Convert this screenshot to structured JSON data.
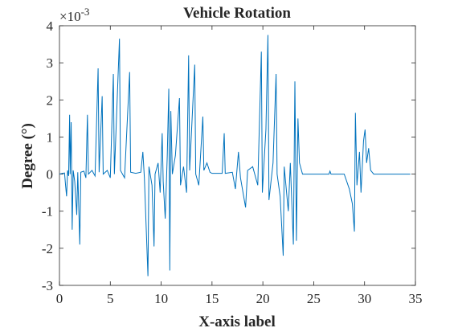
{
  "chart_data": {
    "type": "line",
    "title": "Vehicle Rotation",
    "x_label": "X-axis label",
    "y_label": "Degree (°)",
    "y_scale": {
      "base": "×10",
      "exponent": "-3"
    },
    "xlim": [
      0,
      35
    ],
    "xticks": [
      0,
      5,
      10,
      15,
      20,
      25,
      30,
      35
    ],
    "ylim": [
      -3,
      4
    ],
    "yticks": [
      -3,
      -2,
      -1,
      0,
      1,
      2,
      3,
      4
    ],
    "series": [
      {
        "color": "#0072BD",
        "x": [
          0,
          0.3,
          0.5,
          0.6,
          0.7,
          0.8,
          0.9,
          1.0,
          1.05,
          1.15,
          1.25,
          1.35,
          1.5,
          1.7,
          1.8,
          2.0,
          2.1,
          2.4,
          2.6,
          2.75,
          2.85,
          3.2,
          3.5,
          3.8,
          3.9,
          4.2,
          4.3,
          4.7,
          5.0,
          5.3,
          5.4,
          5.9,
          6.0,
          6.4,
          6.9,
          7.0,
          7.5,
          8.0,
          8.2,
          8.35,
          8.7,
          8.8,
          9.1,
          9.3,
          9.4,
          9.7,
          9.9,
          10.1,
          10.2,
          10.4,
          10.6,
          10.75,
          10.85,
          10.95,
          11.1,
          11.4,
          11.8,
          11.9,
          12.2,
          12.5,
          12.7,
          12.8,
          13.3,
          13.4,
          13.7,
          14.1,
          14.2,
          14.5,
          14.8,
          15.0,
          16.0,
          16.2,
          16.3,
          17.0,
          17.3,
          17.6,
          17.8,
          18.3,
          18.5,
          19.0,
          19.5,
          19.85,
          19.95,
          20.3,
          20.5,
          20.6,
          21.0,
          21.3,
          21.4,
          21.7,
          22.0,
          22.1,
          22.5,
          22.7,
          23.0,
          23.15,
          23.3,
          23.45,
          23.6,
          23.9,
          24.5,
          26.5,
          26.6,
          26.7,
          28.0,
          28.5,
          28.8,
          29.0,
          29.1,
          29.25,
          29.5,
          29.65,
          29.9,
          30.05,
          30.2,
          30.4,
          30.6,
          30.9,
          34.5
        ],
        "values": [
          0,
          0.02,
          0.03,
          -0.3,
          -0.6,
          0.1,
          -0.05,
          1.6,
          0.0,
          1.4,
          -1.5,
          0.1,
          -0.2,
          -1.1,
          0.05,
          -1.9,
          0.05,
          0.08,
          -0.1,
          1.6,
          0.0,
          0.1,
          -0.05,
          2.85,
          0.05,
          2.1,
          0.0,
          0.1,
          -0.1,
          2.7,
          0.0,
          3.65,
          0.1,
          -0.1,
          2.75,
          0.05,
          0.02,
          0.05,
          0.6,
          -0.1,
          -2.75,
          0.2,
          -0.3,
          -1.95,
          0.0,
          0.3,
          -0.5,
          1.1,
          -0.2,
          -1.2,
          0.5,
          2.3,
          -2.6,
          1.7,
          0.0,
          0.5,
          2.05,
          -0.3,
          0.2,
          -0.5,
          3.2,
          0.1,
          2.95,
          0.0,
          -0.3,
          1.55,
          0.1,
          0.3,
          0.05,
          0.02,
          0.02,
          1.1,
          0.02,
          0.05,
          -0.4,
          0.6,
          -0.1,
          -0.9,
          0.1,
          0.2,
          -0.3,
          3.3,
          -0.5,
          1.2,
          3.75,
          -0.7,
          0.3,
          2.7,
          0.0,
          -0.6,
          -2.2,
          0.2,
          -1.0,
          0.3,
          -1.9,
          2.5,
          -1.8,
          1.5,
          0.3,
          0.0,
          0.0,
          0.0,
          0.08,
          0.0,
          0.0,
          -0.4,
          -0.8,
          -1.55,
          1.65,
          -0.3,
          0.6,
          -0.5,
          0.9,
          1.2,
          0.3,
          0.7,
          0.1,
          0.0,
          0.0
        ]
      }
    ]
  }
}
